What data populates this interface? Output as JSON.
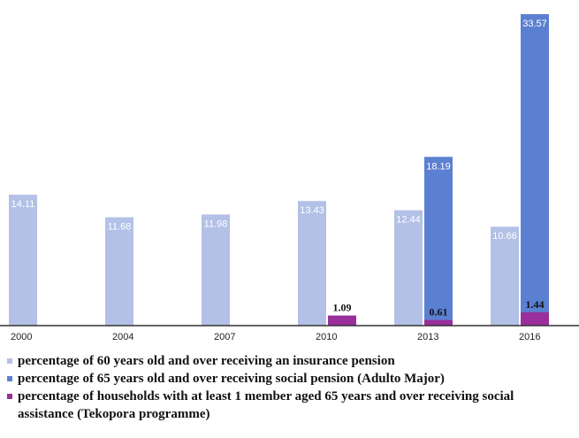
{
  "chart_data": {
    "type": "bar",
    "categories": [
      "2000",
      "2004",
      "2007",
      "2010",
      "2013",
      "2016"
    ],
    "series": [
      {
        "name": "percentage of 60 years old and over receiving an insurance pension",
        "color": "#b4c1e6",
        "values": [
          14.11,
          11.68,
          11.98,
          13.43,
          12.44,
          10.66
        ]
      },
      {
        "name": "percentage of 65 years old and over receiving social pension (Adulto Major)",
        "color": "#5c80d1",
        "values": [
          null,
          null,
          null,
          null,
          18.19,
          33.57
        ]
      },
      {
        "name": "percentage of households with at least 1 member aged  65 years and over receiving social assistance (Tekopora programme)",
        "color": "#9a2f9c",
        "values": [
          null,
          null,
          null,
          1.09,
          0.61,
          1.44
        ]
      }
    ]
  }
}
